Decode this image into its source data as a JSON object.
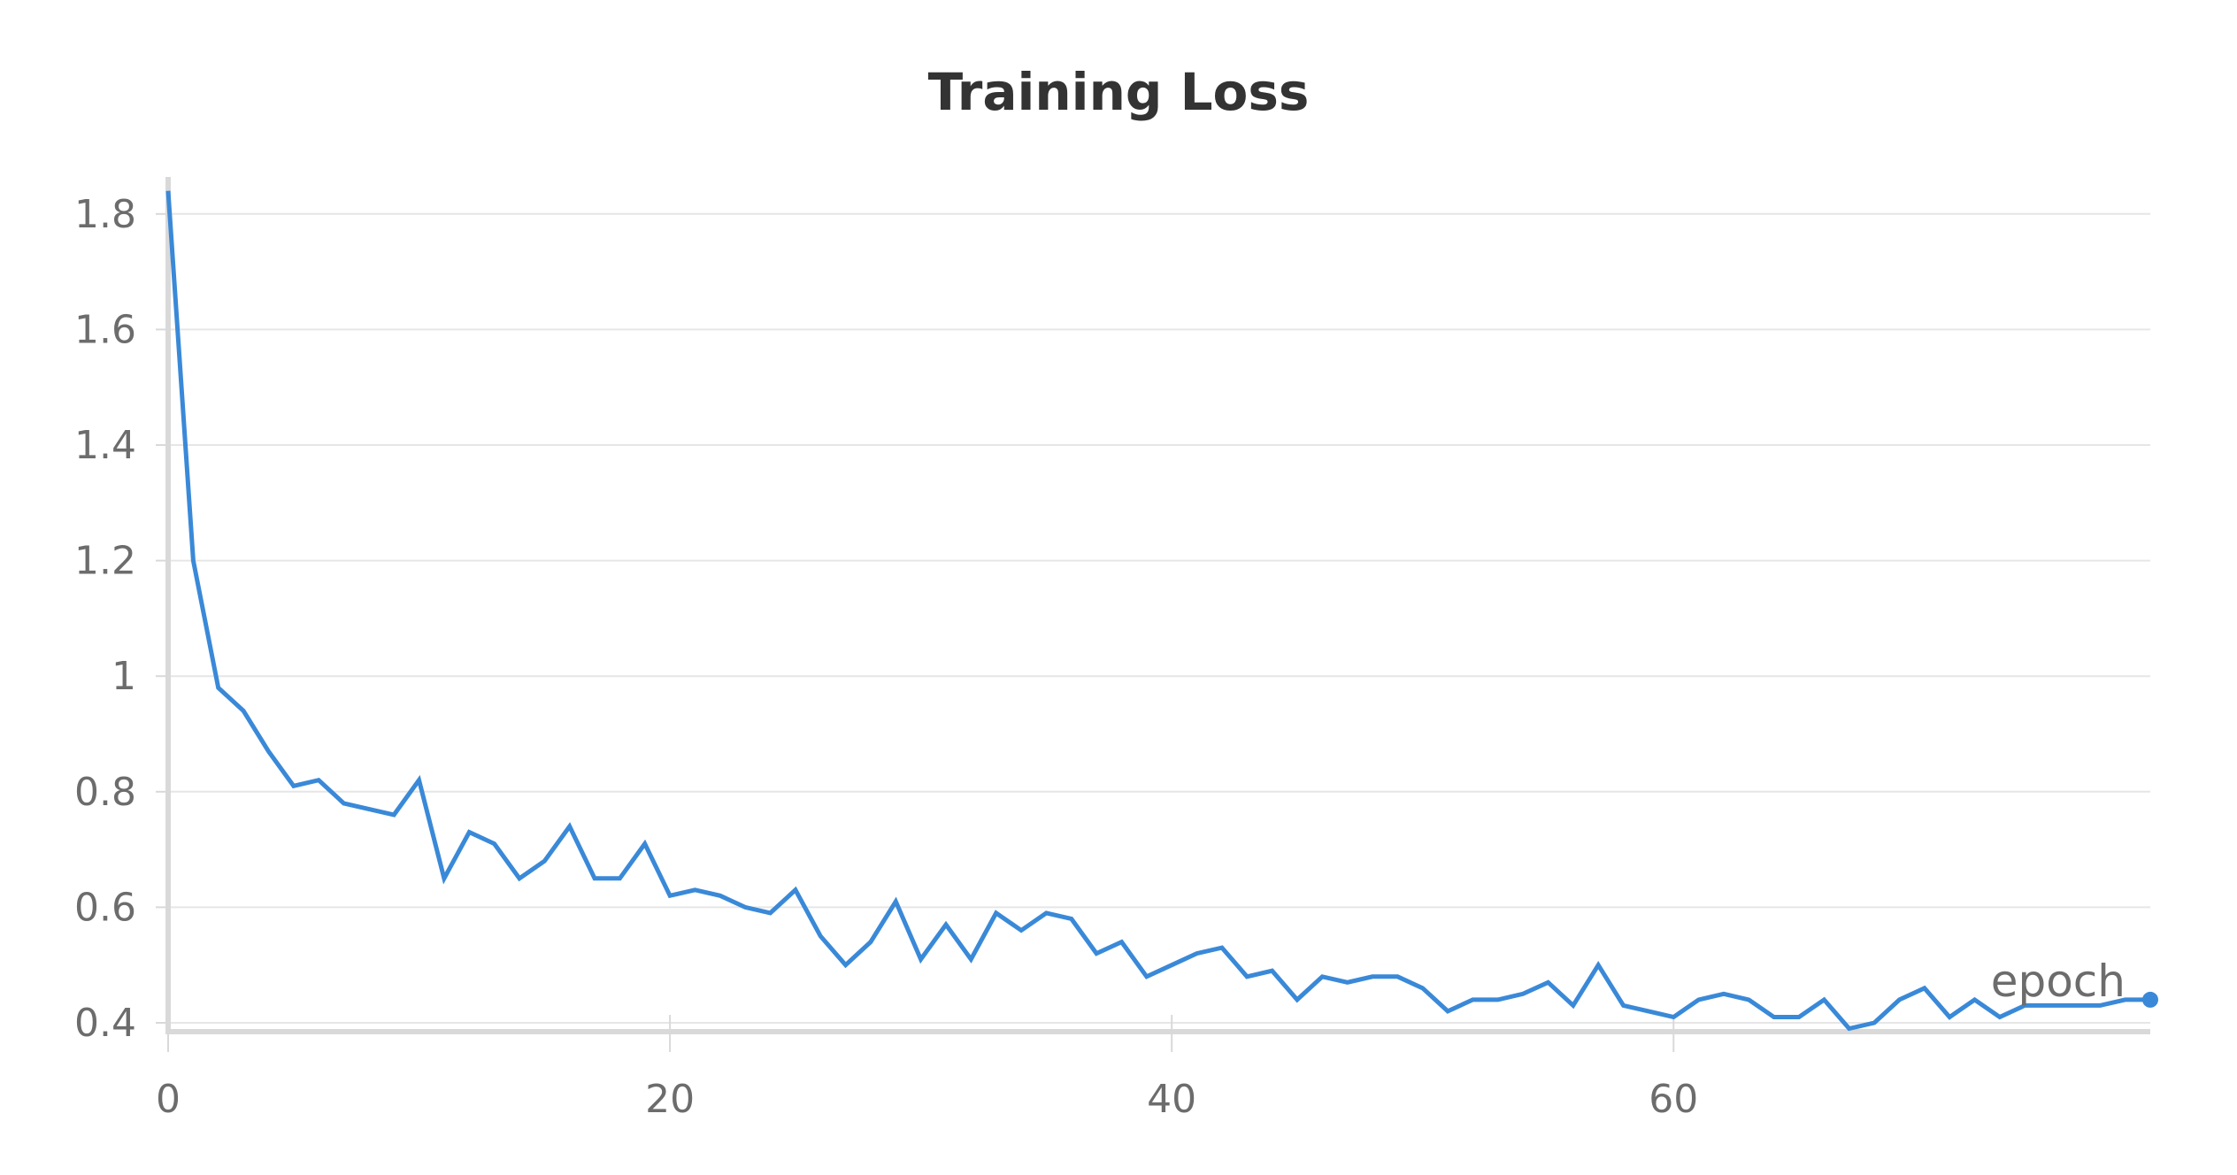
{
  "chart_data": {
    "type": "line",
    "title": "Training Loss",
    "xlabel": "",
    "ylabel": "",
    "xlim": [
      0,
      79
    ],
    "ylim": [
      0.4,
      1.85
    ],
    "xticks": [
      0,
      20,
      40,
      60
    ],
    "xtick_labels": [
      "0",
      "20",
      "40",
      "60"
    ],
    "yticks": [
      0.4,
      0.6,
      0.8,
      1.0,
      1.2,
      1.4,
      1.6,
      1.8
    ],
    "ytick_labels": [
      "0.4",
      "0.6",
      "0.8",
      "1",
      "1.2",
      "1.4",
      "1.6",
      "1.8"
    ],
    "grid": "horizontal",
    "line_color": "#3a89d8",
    "end_label": "epoch",
    "x": [
      0,
      1,
      2,
      3,
      4,
      5,
      6,
      7,
      8,
      9,
      10,
      11,
      12,
      13,
      14,
      15,
      16,
      17,
      18,
      19,
      20,
      21,
      22,
      23,
      24,
      25,
      26,
      27,
      28,
      29,
      30,
      31,
      32,
      33,
      34,
      35,
      36,
      37,
      38,
      39,
      40,
      41,
      42,
      43,
      44,
      45,
      46,
      47,
      48,
      49,
      50,
      51,
      52,
      53,
      54,
      55,
      56,
      57,
      58,
      59,
      60,
      61,
      62,
      63,
      64,
      65,
      66,
      67,
      68,
      69,
      70,
      71,
      72,
      73,
      74,
      75,
      76,
      77,
      78,
      79
    ],
    "y": [
      1.84,
      1.2,
      0.98,
      0.94,
      0.87,
      0.81,
      0.82,
      0.78,
      0.77,
      0.76,
      0.82,
      0.65,
      0.73,
      0.71,
      0.65,
      0.68,
      0.74,
      0.65,
      0.65,
      0.71,
      0.62,
      0.63,
      0.62,
      0.6,
      0.59,
      0.63,
      0.55,
      0.5,
      0.54,
      0.61,
      0.51,
      0.57,
      0.51,
      0.59,
      0.56,
      0.59,
      0.58,
      0.52,
      0.54,
      0.48,
      0.5,
      0.52,
      0.53,
      0.48,
      0.49,
      0.44,
      0.48,
      0.47,
      0.48,
      0.48,
      0.46,
      0.42,
      0.44,
      0.44,
      0.45,
      0.47,
      0.43,
      0.5,
      0.43,
      0.42,
      0.41,
      0.44,
      0.45,
      0.44,
      0.41,
      0.41,
      0.44,
      0.39,
      0.4,
      0.44,
      0.46,
      0.41,
      0.44,
      0.41,
      0.43,
      0.43,
      0.43,
      0.43,
      0.44,
      0.44
    ]
  }
}
